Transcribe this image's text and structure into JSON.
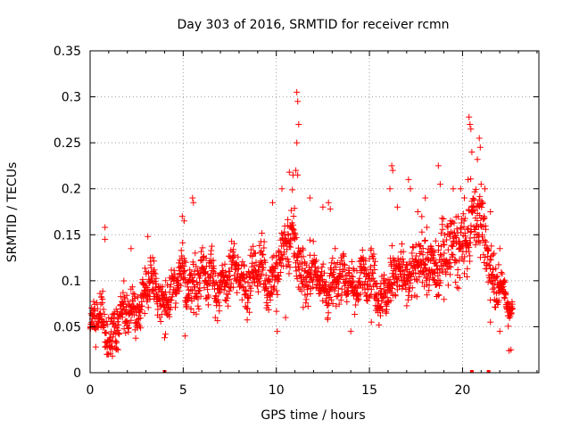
{
  "chart_data": {
    "type": "scatter",
    "title": "Day 303 of 2016, SRMTID for receiver rcmn",
    "xlabel": "GPS time / hours",
    "ylabel": "SRMTID / TECUs",
    "xlim": [
      0,
      24.1
    ],
    "ylim": [
      0,
      0.35
    ],
    "xticks": [
      0,
      5,
      10,
      15,
      20
    ],
    "xtick_labels": [
      "0",
      "5",
      "10",
      "15",
      "20"
    ],
    "yticks": [
      0,
      0.05,
      0.1,
      0.15,
      0.2,
      0.25,
      0.3,
      0.35
    ],
    "ytick_labels": [
      "0",
      "0.05",
      "0.1",
      "0.15",
      "0.2",
      "0.25",
      "0.3",
      "0.35"
    ],
    "grid": true,
    "marker": "plus",
    "marker_color": "#ff0000",
    "trend": {
      "x": [
        0,
        0.5,
        1,
        1.5,
        2,
        2.5,
        3,
        3.5,
        4,
        4.5,
        5,
        5.5,
        6,
        6.5,
        7,
        7.5,
        8,
        8.5,
        9,
        9.5,
        10,
        10.5,
        11,
        11.5,
        12,
        12.5,
        13,
        13.5,
        14,
        14.5,
        15,
        15.5,
        16,
        16.5,
        17,
        17.5,
        18,
        18.5,
        19,
        19.5,
        20,
        20.5,
        21,
        21.5,
        22,
        22.5
      ],
      "y": [
        0.05,
        0.05,
        0.05,
        0.055,
        0.06,
        0.075,
        0.09,
        0.09,
        0.085,
        0.085,
        0.1,
        0.105,
        0.1,
        0.1,
        0.1,
        0.1,
        0.105,
        0.11,
        0.105,
        0.1,
        0.12,
        0.13,
        0.145,
        0.11,
        0.1,
        0.1,
        0.1,
        0.095,
        0.1,
        0.105,
        0.1,
        0.09,
        0.095,
        0.1,
        0.11,
        0.115,
        0.11,
        0.12,
        0.13,
        0.125,
        0.15,
        0.16,
        0.16,
        0.12,
        0.09,
        0.06
      ],
      "spread": [
        0.015,
        0.02,
        0.025,
        0.02,
        0.02,
        0.02,
        0.02,
        0.025,
        0.02,
        0.025,
        0.025,
        0.03,
        0.025,
        0.025,
        0.025,
        0.025,
        0.025,
        0.025,
        0.025,
        0.03,
        0.03,
        0.035,
        0.035,
        0.03,
        0.025,
        0.025,
        0.025,
        0.025,
        0.025,
        0.025,
        0.025,
        0.025,
        0.025,
        0.03,
        0.03,
        0.03,
        0.03,
        0.03,
        0.035,
        0.035,
        0.035,
        0.035,
        0.035,
        0.03,
        0.02,
        0.012
      ]
    },
    "peaks": [
      {
        "x": 0.8,
        "y": 0.158
      },
      {
        "x": 0.8,
        "y": 0.145
      },
      {
        "x": 2.2,
        "y": 0.135
      },
      {
        "x": 3.1,
        "y": 0.148
      },
      {
        "x": 4.95,
        "y": 0.17
      },
      {
        "x": 5.05,
        "y": 0.165
      },
      {
        "x": 5.5,
        "y": 0.19
      },
      {
        "x": 5.55,
        "y": 0.185
      },
      {
        "x": 9.8,
        "y": 0.185
      },
      {
        "x": 10.3,
        "y": 0.2
      },
      {
        "x": 10.7,
        "y": 0.218
      },
      {
        "x": 10.9,
        "y": 0.215
      },
      {
        "x": 11.1,
        "y": 0.305
      },
      {
        "x": 11.15,
        "y": 0.295
      },
      {
        "x": 11.2,
        "y": 0.27
      },
      {
        "x": 11.1,
        "y": 0.25
      },
      {
        "x": 11.05,
        "y": 0.22
      },
      {
        "x": 11.15,
        "y": 0.215
      },
      {
        "x": 11.8,
        "y": 0.19
      },
      {
        "x": 12.5,
        "y": 0.18
      },
      {
        "x": 12.8,
        "y": 0.185
      },
      {
        "x": 12.9,
        "y": 0.178
      },
      {
        "x": 16.1,
        "y": 0.2
      },
      {
        "x": 16.2,
        "y": 0.225
      },
      {
        "x": 16.25,
        "y": 0.22
      },
      {
        "x": 16.5,
        "y": 0.18
      },
      {
        "x": 17.1,
        "y": 0.21
      },
      {
        "x": 17.2,
        "y": 0.2
      },
      {
        "x": 17.6,
        "y": 0.175
      },
      {
        "x": 18.0,
        "y": 0.19
      },
      {
        "x": 18.7,
        "y": 0.225
      },
      {
        "x": 18.8,
        "y": 0.205
      },
      {
        "x": 19.5,
        "y": 0.2
      },
      {
        "x": 19.9,
        "y": 0.2
      },
      {
        "x": 20.1,
        "y": 0.19
      },
      {
        "x": 20.3,
        "y": 0.21
      },
      {
        "x": 20.35,
        "y": 0.278
      },
      {
        "x": 20.4,
        "y": 0.27
      },
      {
        "x": 20.45,
        "y": 0.265
      },
      {
        "x": 20.5,
        "y": 0.24
      },
      {
        "x": 20.8,
        "y": 0.232
      },
      {
        "x": 20.9,
        "y": 0.255
      },
      {
        "x": 20.95,
        "y": 0.245
      },
      {
        "x": 21.0,
        "y": 0.205
      },
      {
        "x": 21.2,
        "y": 0.2
      },
      {
        "x": 21.5,
        "y": 0.175
      },
      {
        "x": 22.0,
        "y": 0.135
      }
    ],
    "lows": [
      {
        "x": 0.3,
        "y": 0.028
      },
      {
        "x": 1.2,
        "y": 0.018
      },
      {
        "x": 1.5,
        "y": 0.025
      },
      {
        "x": 4.0,
        "y": 0.038
      },
      {
        "x": 4.05,
        "y": 0.042
      },
      {
        "x": 5.1,
        "y": 0.04
      },
      {
        "x": 10.05,
        "y": 0.045
      },
      {
        "x": 10.5,
        "y": 0.06
      },
      {
        "x": 14.0,
        "y": 0.045
      },
      {
        "x": 15.1,
        "y": 0.055
      },
      {
        "x": 21.5,
        "y": 0.055
      },
      {
        "x": 22.0,
        "y": 0.045
      },
      {
        "x": 22.5,
        "y": 0.024
      },
      {
        "x": 22.6,
        "y": 0.025
      }
    ],
    "baseline_marks": [
      4.0,
      20.5,
      21.4
    ]
  }
}
